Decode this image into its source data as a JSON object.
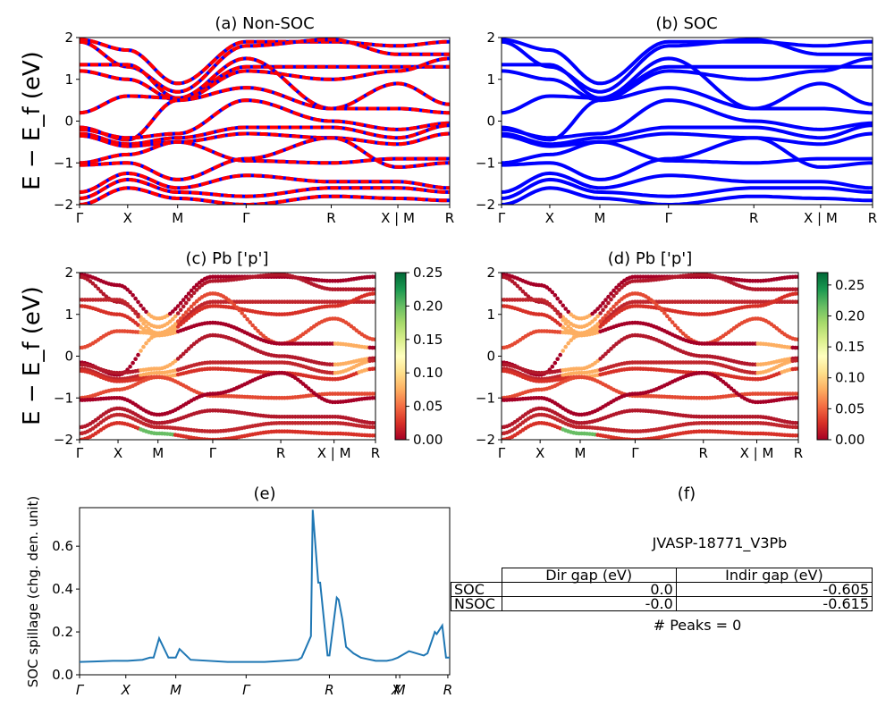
{
  "panels": {
    "a": {
      "title": "(a) Non-SOC"
    },
    "b": {
      "title": "(b) SOC"
    },
    "c": {
      "title": "(c)  Pb ['p']"
    },
    "d": {
      "title": "(d) Pb ['p']"
    },
    "e": {
      "title": "(e)"
    },
    "f": {
      "title": "(f)"
    }
  },
  "ylabel_band": "E − E_f (eV)",
  "band_ticks": {
    "y": [
      "−2",
      "−1",
      "0",
      "1",
      "2"
    ],
    "x": [
      "Γ",
      "X",
      "M",
      "Γ",
      "R",
      "X | M",
      "R"
    ]
  },
  "colorbar_c": {
    "ticks": [
      "0.00",
      "0.05",
      "0.10",
      "0.15",
      "0.20",
      "0.25"
    ],
    "max": 0.25
  },
  "colorbar_d": {
    "ticks": [
      "0.00",
      "0.05",
      "0.10",
      "0.15",
      "0.20",
      "0.25"
    ],
    "max": 0.27
  },
  "spillage": {
    "ylabel": "SOC spillage (chg. den. unit)",
    "yticks": [
      "0.0",
      "0.2",
      "0.4",
      "0.6"
    ],
    "xticks": [
      "Γ",
      "X",
      "M",
      "Γ",
      "R",
      "X",
      "M",
      "R"
    ]
  },
  "material": "JVASP-18771_V3Pb",
  "table": {
    "headers": [
      "Dir gap (eV)",
      "Indir gap (eV)"
    ],
    "rows": [
      {
        "label": "SOC",
        "dir": "0.0",
        "indir": "-0.605"
      },
      {
        "label": "NSOC",
        "dir": "-0.0",
        "indir": "-0.615"
      }
    ]
  },
  "peaks": "# Peaks = 0",
  "colors": {
    "nonsoc_red": "#ff0000",
    "nonsoc_blue": "#0000ff",
    "soc_blue": "#0000ff",
    "spillage_line": "#1f77b4"
  },
  "chart_data": [
    {
      "type": "line",
      "title": "(a) Non-SOC",
      "ylim": [
        -2,
        2
      ],
      "ylabel": "E − E_f (eV)",
      "xticks": [
        "Γ",
        "X",
        "M",
        "Γ",
        "R",
        "X | M",
        "R"
      ]
    },
    {
      "type": "line",
      "title": "(b) SOC",
      "ylim": [
        -2,
        2
      ],
      "xticks": [
        "Γ",
        "X",
        "M",
        "Γ",
        "R",
        "X | M",
        "R"
      ]
    },
    {
      "type": "scatter",
      "title": "(c)  Pb ['p']",
      "ylim": [
        -2,
        2
      ],
      "colorbar": [
        0.0,
        0.25
      ]
    },
    {
      "type": "scatter",
      "title": "(d) Pb ['p']",
      "ylim": [
        -2,
        2
      ],
      "colorbar": [
        0.0,
        0.27
      ]
    },
    {
      "type": "line",
      "title": "(e)",
      "ylabel": "SOC spillage (chg. den. unit)",
      "ylim": [
        0,
        0.78
      ],
      "x": [
        0,
        0.04,
        0.09,
        0.13,
        0.17,
        0.19,
        0.2,
        0.215,
        0.24,
        0.26,
        0.27,
        0.3,
        0.4,
        0.5,
        0.55,
        0.59,
        0.6,
        0.625,
        0.63,
        0.645,
        0.65,
        0.67,
        0.675,
        0.695,
        0.7,
        0.71,
        0.72,
        0.74,
        0.76,
        0.8,
        0.83,
        0.845,
        0.86,
        0.87,
        0.89,
        0.93,
        0.94,
        0.96,
        0.965,
        0.98,
        0.99,
        0.995,
        1.0
      ],
      "series": [
        {
          "values": [
            0.06,
            0.062,
            0.065,
            0.065,
            0.07,
            0.08,
            0.08,
            0.17,
            0.08,
            0.08,
            0.12,
            0.07,
            0.06,
            0.06,
            0.065,
            0.07,
            0.08,
            0.18,
            0.77,
            0.43,
            0.43,
            0.09,
            0.09,
            0.36,
            0.35,
            0.26,
            0.13,
            0.1,
            0.08,
            0.065,
            0.065,
            0.07,
            0.08,
            0.09,
            0.11,
            0.09,
            0.1,
            0.2,
            0.19,
            0.23,
            0.08,
            0.08,
            0.08
          ]
        }
      ],
      "xticks": [
        "Γ",
        "X",
        "M",
        "Γ",
        "R",
        "X",
        "M",
        "R"
      ]
    }
  ]
}
